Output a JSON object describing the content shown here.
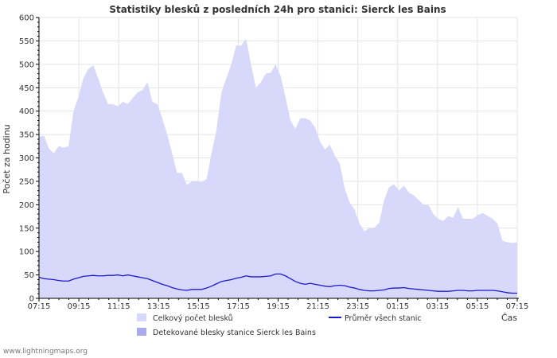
{
  "chart_data": {
    "type": "area",
    "title": "Statistiky blesků z posledních 24h pro stanici: Sierck les Bains",
    "xlabel": "Čas",
    "ylabel": "Počet za hodinu",
    "ylim": [
      0,
      600
    ],
    "yticks": [
      0,
      50,
      100,
      150,
      200,
      250,
      300,
      350,
      400,
      450,
      500,
      550,
      600
    ],
    "x_tick_labels": [
      "07:15",
      "09:15",
      "11:15",
      "13:15",
      "15:15",
      "17:15",
      "19:15",
      "21:15",
      "23:15",
      "01:15",
      "03:15",
      "05:15",
      "07:15"
    ],
    "x_minutes_from_start": [
      0,
      10,
      20,
      30,
      40,
      50,
      60,
      70,
      80,
      90,
      100,
      110,
      120,
      130,
      140,
      150,
      160,
      170,
      180,
      190,
      200,
      210,
      220,
      230,
      240,
      250,
      260,
      270,
      280,
      290,
      300,
      310,
      320,
      330,
      340,
      350,
      360,
      370,
      380,
      390,
      400,
      410,
      420,
      430,
      440,
      450,
      460,
      470,
      480,
      490,
      500,
      510,
      520,
      530,
      540,
      550,
      560,
      570,
      580,
      590,
      600,
      610,
      620,
      630,
      640,
      650,
      660,
      670,
      680,
      690,
      700,
      710,
      720,
      730,
      740,
      750,
      760,
      770,
      780,
      790,
      800,
      810,
      820,
      830,
      840,
      850,
      860,
      870,
      880,
      890,
      900,
      910,
      920,
      930,
      940,
      950,
      960,
      970,
      980,
      990,
      1000,
      1010,
      1020,
      1030,
      1040,
      1050,
      1060,
      1070,
      1080,
      1090,
      1100,
      1110,
      1120,
      1130,
      1140,
      1150,
      1160,
      1170,
      1180,
      1190,
      1200,
      1210,
      1220,
      1230,
      1240,
      1250,
      1260,
      1270,
      1280,
      1290,
      1300,
      1310,
      1320,
      1330,
      1340,
      1350,
      1360,
      1370,
      1380,
      1390,
      1400,
      1410,
      1420,
      1430,
      1440
    ],
    "series": [
      {
        "name": "Celkový počet blesků",
        "style": "area",
        "color": "#d8d8fa",
        "values": [
          345,
          348,
          320,
          310,
          325,
          322,
          325,
          400,
          430,
          470,
          490,
          498,
          470,
          440,
          415,
          415,
          410,
          420,
          415,
          428,
          440,
          445,
          462,
          420,
          415,
          385,
          350,
          310,
          268,
          268,
          242,
          250,
          250,
          248,
          255,
          310,
          360,
          440,
          470,
          500,
          540,
          540,
          555,
          500,
          450,
          462,
          480,
          482,
          500,
          475,
          430,
          380,
          362,
          385,
          385,
          380,
          365,
          335,
          318,
          328,
          305,
          288,
          235,
          205,
          190,
          160,
          143,
          150,
          150,
          162,
          210,
          237,
          244,
          230,
          241,
          226,
          220,
          210,
          200,
          199,
          180,
          170,
          165,
          176,
          172,
          195,
          170,
          170,
          170,
          178,
          182,
          176,
          170,
          160,
          123,
          120,
          118,
          120
        ],
        "values_range": "x every 15 min"
      },
      {
        "name": "Detekované blesky stanice Sierck les Bains",
        "style": "area",
        "color": "#aaaaee",
        "values": []
      },
      {
        "name": "Průměr všech stanic",
        "style": "line",
        "color": "#1a1acc",
        "values": [
          45,
          42,
          41,
          40,
          38,
          37,
          37,
          41,
          44,
          47,
          48,
          49,
          48,
          48,
          49,
          49,
          50,
          48,
          50,
          48,
          46,
          44,
          42,
          38,
          34,
          30,
          27,
          23,
          20,
          18,
          17,
          19,
          19,
          19,
          22,
          26,
          31,
          36,
          38,
          40,
          43,
          45,
          48,
          46,
          46,
          46,
          47,
          48,
          52,
          52,
          48,
          42,
          36,
          32,
          30,
          32,
          30,
          28,
          26,
          25,
          27,
          28,
          27,
          24,
          22,
          19,
          17,
          16,
          16,
          17,
          18,
          21,
          22,
          22,
          23,
          21,
          20,
          19,
          18,
          17,
          16,
          15,
          15,
          15,
          16,
          17,
          17,
          16,
          16,
          17,
          17,
          17,
          17,
          16,
          14,
          12,
          11,
          11
        ]
      }
    ],
    "legend": [
      {
        "label": "Celkový počet blesků",
        "kind": "area",
        "color": "#d8d8fa"
      },
      {
        "label": "Detekované blesky stanice Sierck les Bains",
        "kind": "area",
        "color": "#aaaaee"
      },
      {
        "label": "Průměr všech stanic",
        "kind": "line",
        "color": "#1a1acc"
      }
    ],
    "legend_placement": "bottom",
    "grid": true
  },
  "footer": {
    "credit": "www.lightningmaps.org"
  }
}
